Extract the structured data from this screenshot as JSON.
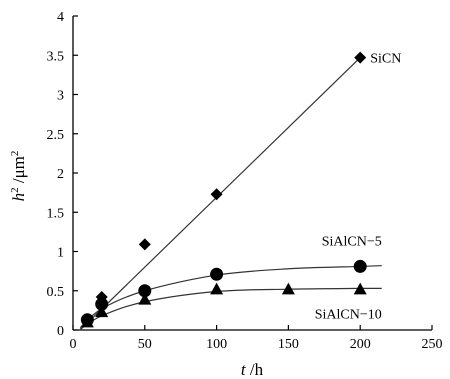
{
  "chart_data": {
    "type": "scatter",
    "xlabel_var": "t",
    "xlabel_unit": " /h",
    "ylabel_var": "h",
    "ylabel_sup": "2",
    "ylabel_unit": " /μm",
    "ylabel_unit_sup": "2",
    "xlim": [
      0,
      250
    ],
    "ylim": [
      0,
      4
    ],
    "x_ticks": [
      "0",
      "50",
      "100",
      "150",
      "200",
      "250"
    ],
    "y_ticks": [
      "0",
      "0.5",
      "1",
      "1.5",
      "2",
      "2.5",
      "3",
      "3.5",
      "4"
    ],
    "grid": false,
    "series": [
      {
        "name": "SiCN",
        "marker": "diamond",
        "x": [
          10,
          20,
          50,
          100,
          200
        ],
        "y": [
          0.12,
          0.42,
          1.09,
          1.73,
          3.47
        ],
        "fit": {
          "kind": "linear",
          "x": [
            5,
            200
          ],
          "y": [
            0.0,
            3.47
          ]
        }
      },
      {
        "name": "SiAlCN−5",
        "marker": "circle",
        "x": [
          10,
          20,
          50,
          100,
          200
        ],
        "y": [
          0.13,
          0.33,
          0.5,
          0.71,
          0.81
        ],
        "fit": {
          "kind": "curve",
          "x": [
            5,
            20,
            50,
            100,
            150,
            200,
            215
          ],
          "y": [
            0.03,
            0.27,
            0.5,
            0.7,
            0.78,
            0.81,
            0.82
          ]
        }
      },
      {
        "name": "SiAlCN−10",
        "marker": "triangle",
        "x": [
          10,
          20,
          50,
          100,
          150,
          200
        ],
        "y": [
          0.1,
          0.23,
          0.39,
          0.52,
          0.52,
          0.52
        ],
        "fit": {
          "kind": "curve",
          "x": [
            5,
            20,
            50,
            100,
            150,
            200,
            215
          ],
          "y": [
            0.01,
            0.18,
            0.36,
            0.49,
            0.52,
            0.53,
            0.53
          ]
        }
      }
    ],
    "colors": {
      "axis": "#000000",
      "marker": "#000000",
      "line": "#333333"
    }
  }
}
